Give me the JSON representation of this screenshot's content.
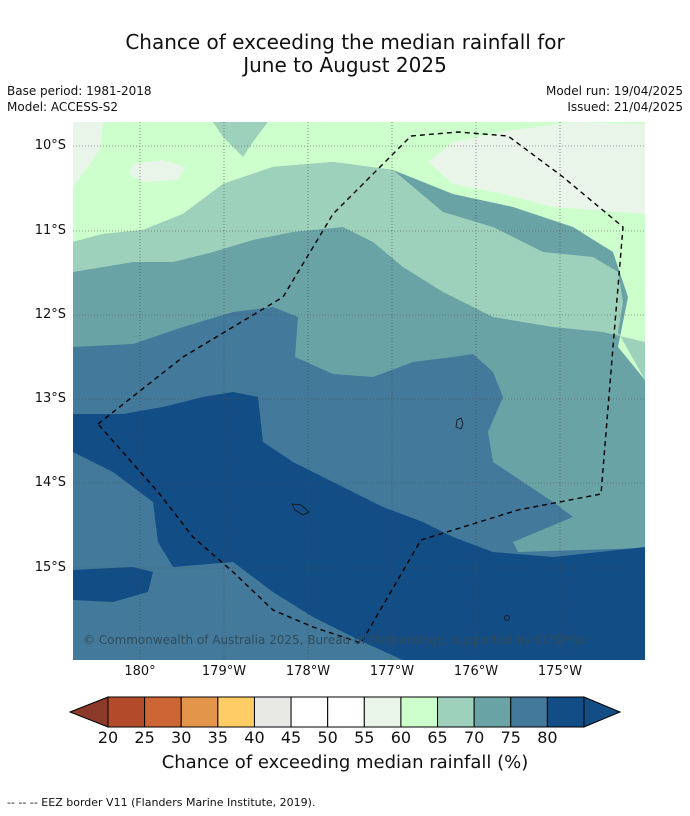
{
  "title_line1": "Chance of exceeding the median rainfall for",
  "title_line2": "June to August 2025",
  "base_period": "Base period: 1981-2018",
  "model": "Model: ACCESS-S2",
  "model_run": "Model run: 19/04/2025",
  "issued": "Issued: 21/04/2025",
  "lat_labels": [
    "10°S",
    "11°S",
    "12°S",
    "13°S",
    "14°S",
    "15°S"
  ],
  "lon_labels": [
    "180°",
    "179°W",
    "178°W",
    "177°W",
    "176°W",
    "175°W"
  ],
  "copyright": "© Commonwealth of Australia 2025, Bureau of Meteorology, supported by COSPPac",
  "colorbar": {
    "ticks": [
      "20",
      "25",
      "30",
      "35",
      "40",
      "45",
      "50",
      "55",
      "60",
      "65",
      "70",
      "75",
      "80"
    ],
    "colors": [
      "#b34a2a",
      "#cd6535",
      "#e39549",
      "#ffcc66",
      "#e8e8e4",
      "#ffffff",
      "#ffffff",
      "#e9f5e9",
      "#ccffcc",
      "#9ed1bb",
      "#6aa3a6",
      "#43799a",
      "#134d86"
    ],
    "under_color": "#8b3a2a",
    "over_color": "#134d86",
    "label": "Chance of exceeding median rainfall (%)"
  },
  "footnote": "--  --  -- EEZ border V11 (Flanders Marine Institute, 2019)."
}
